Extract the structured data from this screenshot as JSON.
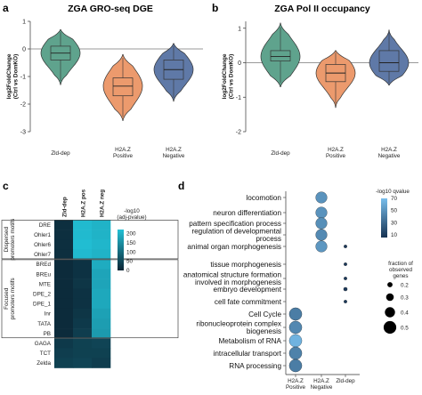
{
  "panels": {
    "a": {
      "label": "a",
      "title": "ZGA GRO-seq DGE"
    },
    "b": {
      "label": "b",
      "title": "ZGA Pol II occupancy"
    },
    "c": {
      "label": "c"
    },
    "d": {
      "label": "d"
    }
  },
  "colors": {
    "zld_dep": "#5fa38d",
    "h2az_pos": "#ec9a6d",
    "h2az_neg": "#5f79a7",
    "heat_low": "#0b2434",
    "heat_high": "#22c1d6"
  },
  "chart_data": [
    {
      "type": "violin",
      "panel": "a",
      "title": "ZGA GRO-seq DGE",
      "ylabel": "log2FoldChange\n(Ctrl vs DomKO)",
      "ylim": [
        -3,
        1
      ],
      "yticks": [
        "1",
        "0",
        "-1",
        "-2",
        "-3"
      ],
      "categories": [
        "Zld-dep",
        "H2A.Z\nPositive",
        "H2A.Z\nNegative"
      ],
      "series": [
        {
          "median": -0.15,
          "q1": -0.4,
          "q3": 0.1,
          "min": -1.3,
          "max": 0.7
        },
        {
          "median": -1.35,
          "q1": -1.7,
          "q3": -1.05,
          "min": -2.6,
          "max": -0.2
        },
        {
          "median": -0.75,
          "q1": -1.1,
          "q3": -0.4,
          "min": -1.9,
          "max": 0.2
        }
      ]
    },
    {
      "type": "violin",
      "panel": "b",
      "title": "ZGA Pol II occupancy",
      "ylabel": "log2FoldChange\n(Ctrl vs DomKO)",
      "ylim": [
        -2,
        1.2
      ],
      "yticks": [
        "1",
        "0",
        "-1",
        "-2"
      ],
      "categories": [
        "Zld-dep",
        "H2A.Z\nPositive",
        "H2A.Z\nNegative"
      ],
      "series": [
        {
          "median": 0.18,
          "q1": 0.05,
          "q3": 0.35,
          "min": -0.7,
          "max": 1.15
        },
        {
          "median": -0.3,
          "q1": -0.55,
          "q3": -0.05,
          "min": -1.3,
          "max": 0.35
        },
        {
          "median": 0.0,
          "q1": -0.25,
          "q3": 0.35,
          "min": -0.65,
          "max": 0.95
        }
      ]
    },
    {
      "type": "heatmap",
      "panel": "c",
      "columns": [
        "Zld-dep",
        "H2A.Z pos",
        "H2A.Z neg"
      ],
      "rows": [
        "DRE",
        "Ohler1",
        "Ohler6",
        "Ohler7",
        "BREd",
        "BREu",
        "MTE",
        "DPE_2",
        "DPE_1",
        "Inr",
        "TATA",
        "PB",
        "GAGA",
        "TCT",
        "Zelda"
      ],
      "groups": [
        {
          "label": "Dispersed promoters motifs",
          "rows": [
            0,
            3
          ]
        },
        {
          "label": "Focused promoters motifs",
          "rows": [
            4,
            11
          ]
        }
      ],
      "values": [
        [
          15,
          210,
          200
        ],
        [
          15,
          210,
          200
        ],
        [
          15,
          215,
          205
        ],
        [
          15,
          210,
          200
        ],
        [
          10,
          20,
          190
        ],
        [
          10,
          20,
          180
        ],
        [
          10,
          25,
          180
        ],
        [
          10,
          20,
          185
        ],
        [
          10,
          20,
          185
        ],
        [
          10,
          25,
          175
        ],
        [
          10,
          30,
          170
        ],
        [
          10,
          35,
          165
        ],
        [
          30,
          40,
          45
        ],
        [
          35,
          40,
          40
        ],
        [
          40,
          45,
          35
        ]
      ],
      "legend_title": "-log10\n(adj-pvalue)",
      "legend_ticks": [
        0,
        50,
        100,
        150,
        200
      ]
    },
    {
      "type": "dot",
      "panel": "d",
      "columns": [
        "H2A.Z\nPositive",
        "H2A.Z\nNegative",
        "Zld-dep"
      ],
      "terms": [
        "locomotion",
        "neuron differentiation",
        "pattern specification process",
        "regulation of developmental\nprocess",
        "animal organ morphogenesis",
        "tissue morphogenesis",
        "anatomical structure formation\ninvolved in morphogenesis",
        "embryo development",
        "cell fate commitment",
        "Cell Cycle",
        "ribonucleoprotein complex\nbiogenesis",
        "Metabolism of RNA",
        "intracellular transport",
        "RNA processing"
      ],
      "points": [
        {
          "term": 0,
          "col": 1,
          "q": 50,
          "frac": 0.45
        },
        {
          "term": 1,
          "col": 1,
          "q": 50,
          "frac": 0.45
        },
        {
          "term": 2,
          "col": 1,
          "q": 48,
          "frac": 0.45
        },
        {
          "term": 3,
          "col": 1,
          "q": 46,
          "frac": 0.45
        },
        {
          "term": 4,
          "col": 1,
          "q": 52,
          "frac": 0.45
        },
        {
          "term": 4,
          "col": 2,
          "q": 8,
          "frac": 0.12
        },
        {
          "term": 5,
          "col": 2,
          "q": 8,
          "frac": 0.12
        },
        {
          "term": 6,
          "col": 2,
          "q": 8,
          "frac": 0.12
        },
        {
          "term": 7,
          "col": 2,
          "q": 8,
          "frac": 0.14
        },
        {
          "term": 8,
          "col": 2,
          "q": 8,
          "frac": 0.12
        },
        {
          "term": 9,
          "col": 0,
          "q": 40,
          "frac": 0.5
        },
        {
          "term": 10,
          "col": 0,
          "q": 45,
          "frac": 0.5
        },
        {
          "term": 11,
          "col": 0,
          "q": 65,
          "frac": 0.5
        },
        {
          "term": 12,
          "col": 0,
          "q": 42,
          "frac": 0.5
        },
        {
          "term": 13,
          "col": 0,
          "q": 40,
          "frac": 0.5
        }
      ],
      "color_legend_title": "-log10 qvalue",
      "color_legend_ticks": [
        70,
        50,
        30,
        10
      ],
      "size_legend_title": "fraction of\nobserved\ngenes",
      "size_legend_values": [
        0.2,
        0.3,
        0.4,
        0.5
      ]
    }
  ]
}
